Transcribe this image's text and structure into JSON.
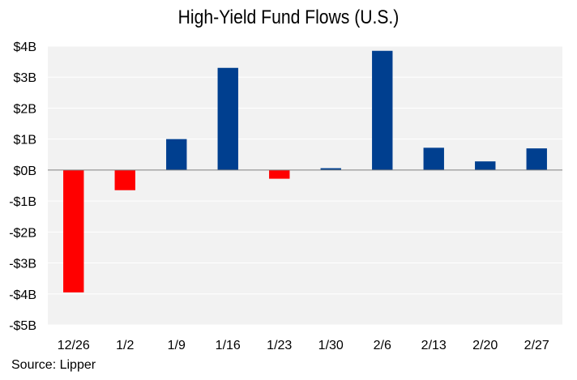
{
  "chart_data": {
    "type": "bar",
    "title": "High-Yield Fund Flows (U.S.)",
    "categories": [
      "12/26",
      "1/2",
      "1/9",
      "1/16",
      "1/23",
      "1/30",
      "2/6",
      "2/13",
      "2/20",
      "2/27"
    ],
    "values": [
      -3.95,
      -0.65,
      1.0,
      3.3,
      -0.28,
      0.06,
      3.85,
      0.72,
      0.28,
      0.7
    ],
    "unit": "billions USD",
    "ylim": [
      -5,
      4
    ],
    "yticks": [
      4,
      3,
      2,
      1,
      0,
      -1,
      -2,
      -3,
      -4,
      -5
    ],
    "ytick_labels": [
      "$4B",
      "$3B",
      "$2B",
      "$1B",
      "$0B",
      "-$1B",
      "-$2B",
      "-$3B",
      "-$4B",
      "-$5B"
    ],
    "colors": {
      "positive": "#003f8f",
      "negative": "#ff0000",
      "plot_bg": "#f2f2f2",
      "gridline": "#ffffff",
      "zero_line": "#808080"
    },
    "grid": true,
    "source": "Source: Lipper"
  }
}
